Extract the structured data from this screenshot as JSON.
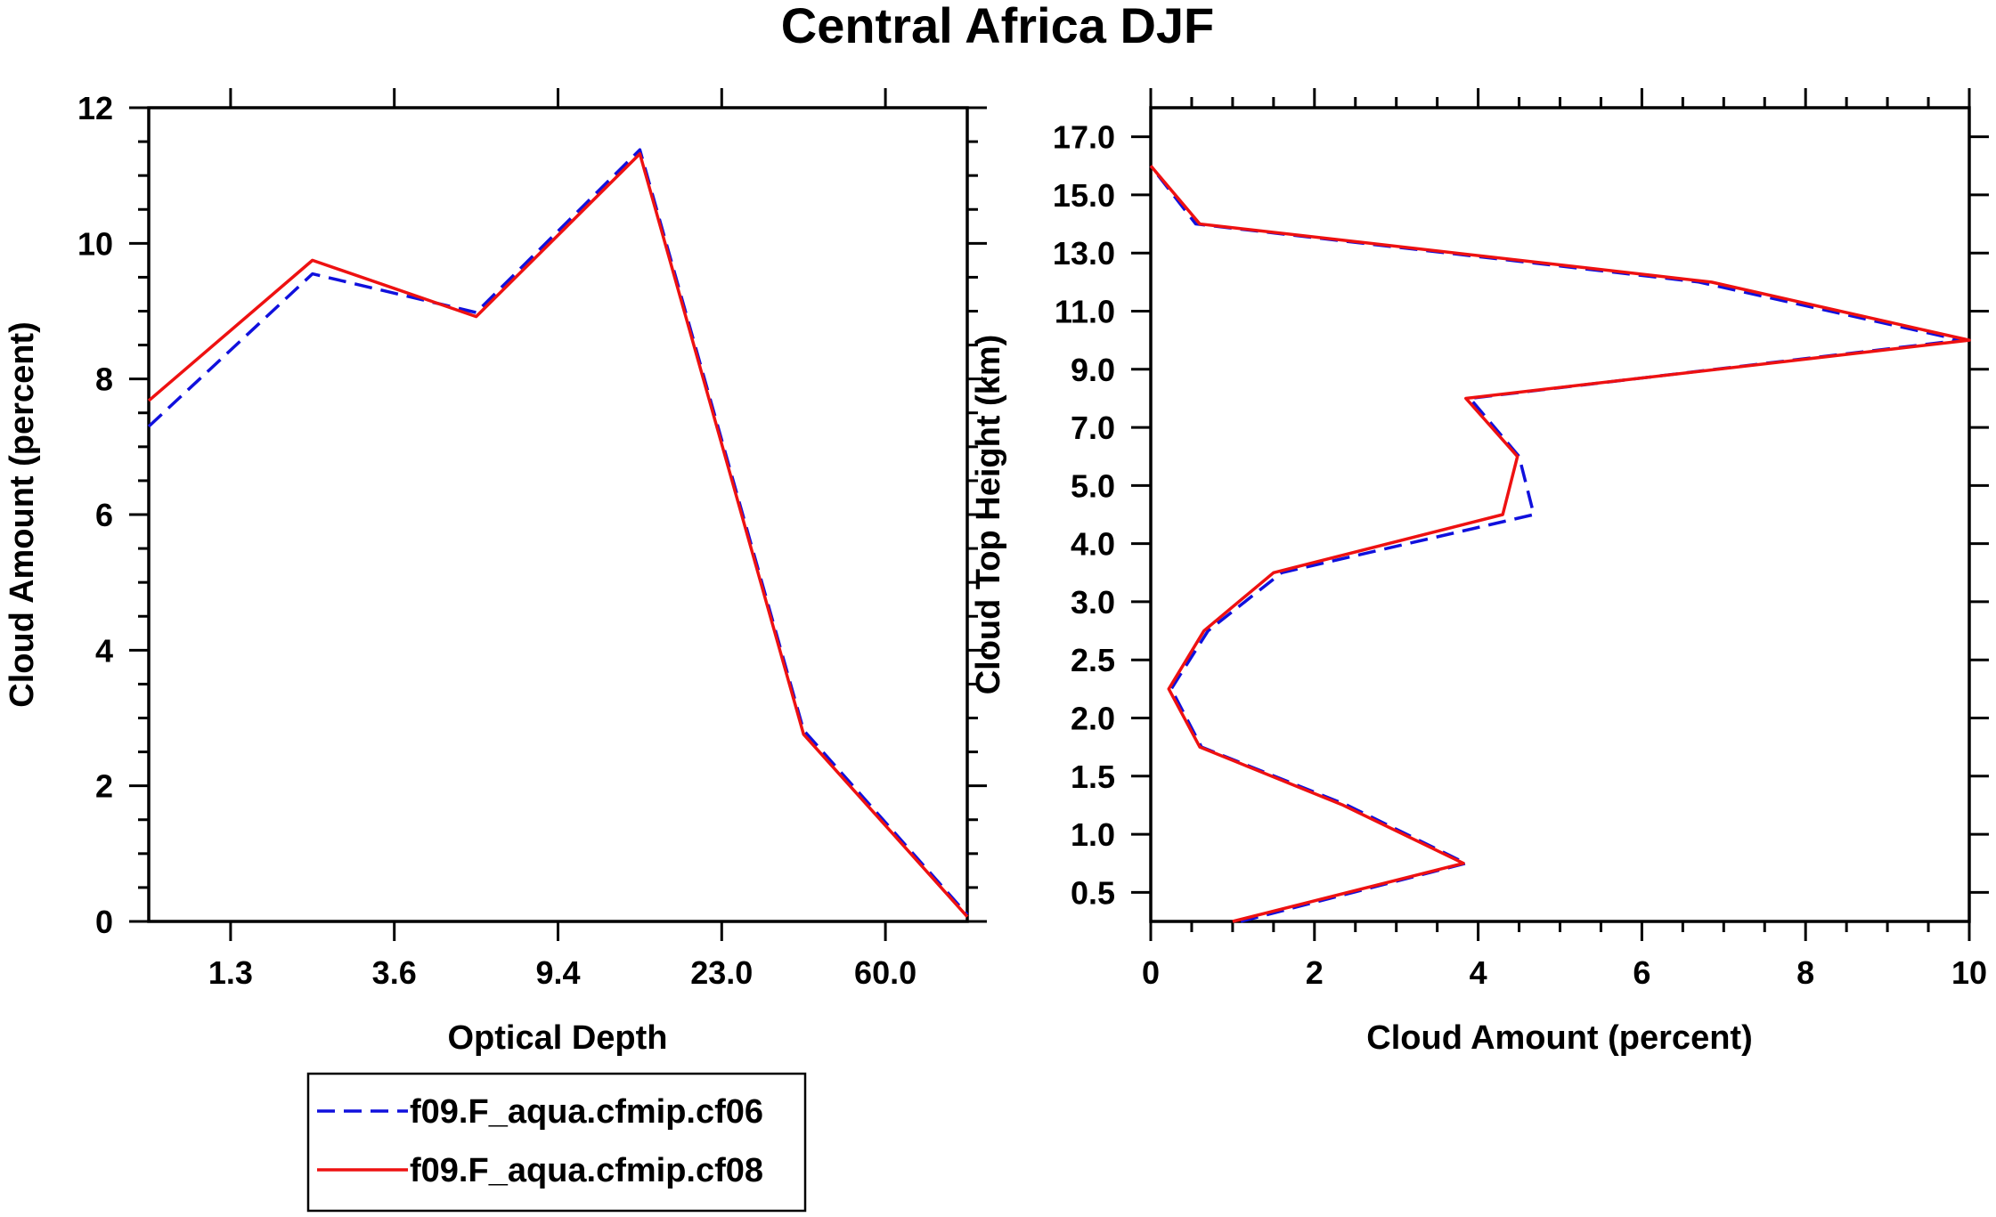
{
  "figure_title": "Central Africa DJF",
  "legend": {
    "entries": [
      {
        "label": "f09.F_aqua.cfmip.cf06",
        "color": "#1010dd",
        "dash": "dashed"
      },
      {
        "label": "f09.F_aqua.cfmip.cf08",
        "color": "#ee1111",
        "dash": "solid"
      }
    ]
  },
  "chart_data": [
    {
      "type": "line",
      "title": "Central Africa DJF",
      "xlabel": "Optical Depth",
      "ylabel": "Cloud Amount (percent)",
      "x_tick_labels": [
        "1.3",
        "3.6",
        "9.4",
        "23.0",
        "60.0"
      ],
      "x_tick_positions": [
        1,
        2,
        3,
        4,
        5
      ],
      "xlim": [
        0.5,
        5.5
      ],
      "ylim": [
        0,
        12
      ],
      "y_ticks": [
        0,
        2,
        4,
        6,
        8,
        10,
        12
      ],
      "y_tick_labels": [
        "0",
        "2",
        "4",
        "6",
        "8",
        "10",
        "12"
      ],
      "x": [
        0.5,
        1.5,
        2.5,
        3.5,
        4.5,
        5.5
      ],
      "series": [
        {
          "name": "f09.F_aqua.cfmip.cf06",
          "color": "#1010dd",
          "dash": "dashed",
          "values": [
            7.3,
            9.55,
            8.98,
            11.38,
            2.82,
            0.1
          ]
        },
        {
          "name": "f09.F_aqua.cfmip.cf08",
          "color": "#ee1111",
          "dash": "solid",
          "values": [
            7.68,
            9.75,
            8.92,
            11.32,
            2.76,
            0.07
          ]
        }
      ]
    },
    {
      "type": "line",
      "orientation": "horizontal",
      "xlabel": "Cloud Amount (percent)",
      "ylabel": "Cloud Top Height (km)",
      "xlim": [
        0,
        10
      ],
      "x_ticks": [
        0,
        2,
        4,
        6,
        8,
        10
      ],
      "x_tick_labels": [
        "0",
        "2",
        "4",
        "6",
        "8",
        "10"
      ],
      "ylim": [
        0,
        14
      ],
      "y_tick_labels": [
        "0.5",
        "1.0",
        "1.5",
        "2.0",
        "2.5",
        "3.0",
        "4.0",
        "5.0",
        "7.0",
        "9.0",
        "11.0",
        "13.0",
        "15.0",
        "17.0"
      ],
      "y_tick_positions": [
        0.5,
        1.5,
        2.5,
        3.5,
        4.5,
        5.5,
        6.5,
        7.5,
        8.5,
        9.5,
        10.5,
        11.5,
        12.5,
        13.5
      ],
      "levels": [
        0,
        1,
        2,
        3,
        4,
        5,
        6,
        7,
        8,
        9,
        10,
        11,
        12,
        13
      ],
      "series": [
        {
          "name": "f09.F_aqua.cfmip.cf06",
          "color": "#1010dd",
          "dash": "dashed",
          "values": [
            1.1,
            3.85,
            2.4,
            0.62,
            0.25,
            0.7,
            1.6,
            4.68,
            4.5,
            3.9,
            9.9,
            6.7,
            0.55,
            0.0
          ]
        },
        {
          "name": "f09.F_aqua.cfmip.cf08",
          "color": "#ee1111",
          "dash": "solid",
          "values": [
            1.0,
            3.82,
            2.35,
            0.6,
            0.22,
            0.65,
            1.5,
            4.3,
            4.48,
            3.85,
            10.0,
            6.85,
            0.6,
            0.0
          ]
        }
      ]
    }
  ]
}
